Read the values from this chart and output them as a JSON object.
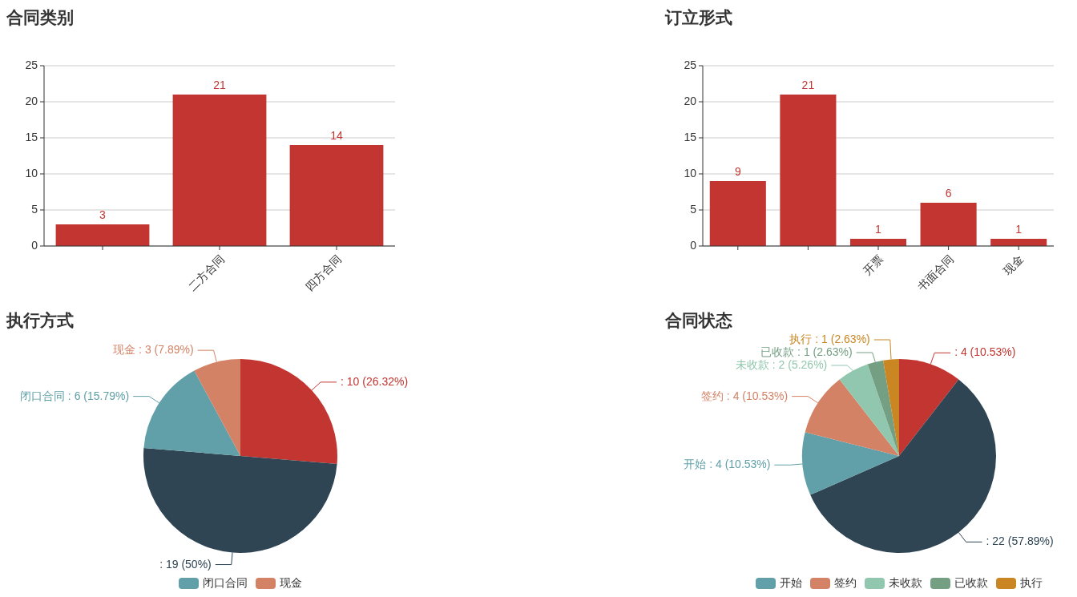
{
  "chart_data": [
    {
      "type": "bar",
      "title": "合同类别",
      "categories": [
        null,
        "二方合同",
        "四方合同"
      ],
      "values": [
        3,
        21,
        14
      ],
      "color": "#c23531",
      "ylim": [
        0,
        25
      ],
      "yticks": [
        0,
        5,
        10,
        15,
        20,
        25
      ],
      "grid": "y",
      "data_labels": true
    },
    {
      "type": "bar",
      "title": "订立形式",
      "categories": [
        null,
        null,
        "开票",
        "书面合同",
        "现金"
      ],
      "values": [
        9,
        21,
        1,
        6,
        1
      ],
      "color": "#c23531",
      "ylim": [
        0,
        25
      ],
      "yticks": [
        0,
        5,
        10,
        15,
        20,
        25
      ],
      "grid": "y",
      "data_labels": true
    },
    {
      "type": "pie",
      "title": "执行方式",
      "categories": [
        null,
        null,
        "闭口合同",
        "现金"
      ],
      "values": [
        10,
        19,
        6,
        3
      ],
      "colors": [
        "#c23531",
        "#2f4554",
        "#61a0a8",
        "#d48265"
      ],
      "value_labels": [
        ": 10 (26.32%)",
        ": 19 (50%)",
        "闭口合同 : 6 (15.79%)",
        "现金 : 3 (7.89%)"
      ],
      "legend": "bottom"
    },
    {
      "type": "pie",
      "title": "合同状态",
      "categories": [
        null,
        null,
        "开始",
        "签约",
        "未收款",
        "已收款",
        "执行"
      ],
      "values": [
        4,
        22,
        4,
        4,
        2,
        1,
        1
      ],
      "colors": [
        "#c23531",
        "#2f4554",
        "#61a0a8",
        "#d48265",
        "#91c7ae",
        "#749f83",
        "#ca8622"
      ],
      "value_labels": [
        ": 4 (10.53%)",
        ": 22 (57.89%)",
        "开始 : 4 (10.53%)",
        "签约 : 4 (10.53%)",
        "未收款 : 2 (5.26%)",
        "已收款 : 1 (2.63%)",
        "执行 : 1 (2.63%)"
      ],
      "legend": "bottom"
    }
  ]
}
